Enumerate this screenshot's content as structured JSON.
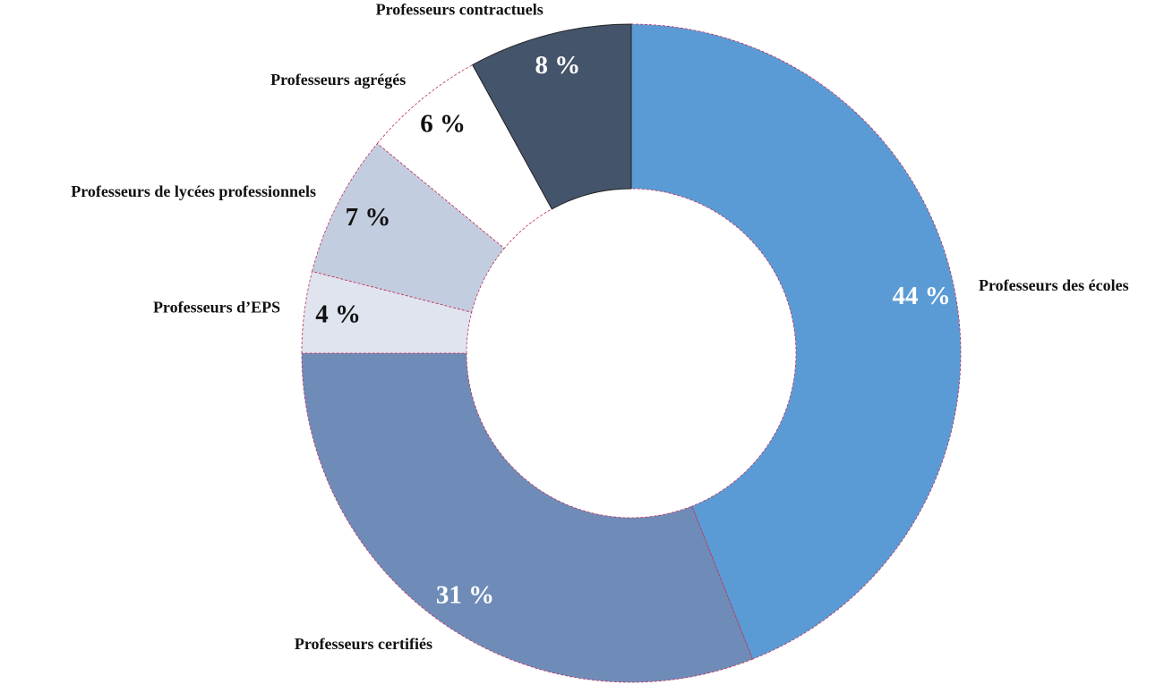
{
  "chart_data": {
    "type": "donut",
    "categories": [
      "Professeurs des écoles",
      "Professeurs certifiés",
      "Professeurs d’EPS",
      "Professeurs de lycées professionnels",
      "Professeurs agrégés",
      "Professeurs contractuels"
    ],
    "values": [
      44,
      31,
      4,
      7,
      6,
      8
    ],
    "value_labels": [
      "44 %",
      "31 %",
      "4 %",
      "7 %",
      "6 %",
      "8 %"
    ],
    "colors": [
      "#5b9bd5",
      "#6f8cb8",
      "#dfe4ee",
      "#c3cde0",
      "#ffffff",
      "#44546a"
    ],
    "value_label_colors": [
      "#ffffff",
      "#ffffff",
      "#111111",
      "#111111",
      "#111111",
      "#ffffff"
    ]
  }
}
